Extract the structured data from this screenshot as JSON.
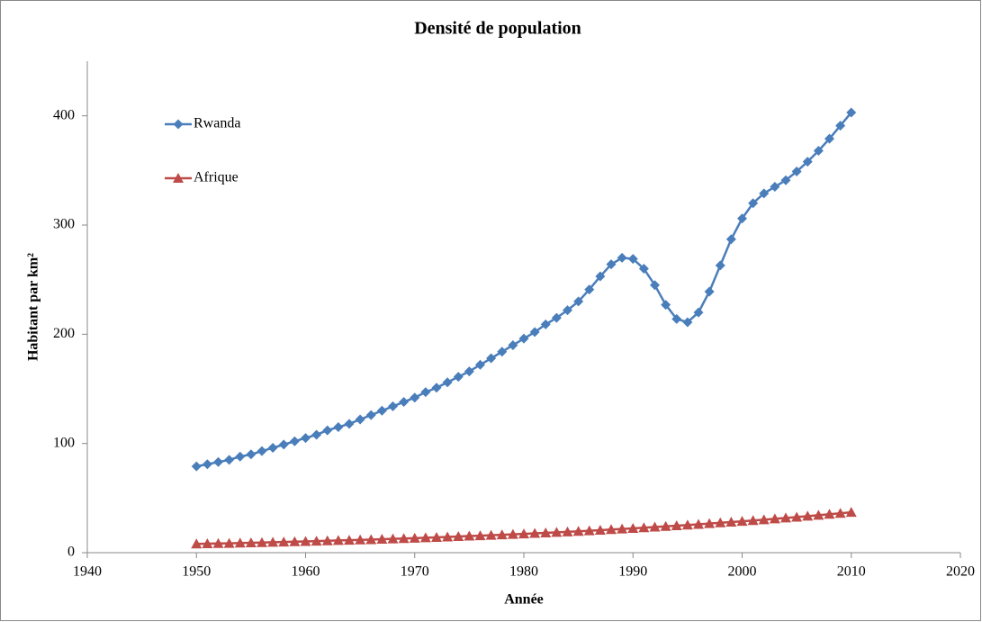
{
  "chart_data": {
    "type": "line",
    "title": "Densité de population",
    "x_label": "Année",
    "y_label": "Habitant par km²",
    "x": [
      1950,
      1951,
      1952,
      1953,
      1954,
      1955,
      1956,
      1957,
      1958,
      1959,
      1960,
      1961,
      1962,
      1963,
      1964,
      1965,
      1966,
      1967,
      1968,
      1969,
      1970,
      1971,
      1972,
      1973,
      1974,
      1975,
      1976,
      1977,
      1978,
      1979,
      1980,
      1981,
      1982,
      1983,
      1984,
      1985,
      1986,
      1987,
      1988,
      1989,
      1990,
      1991,
      1992,
      1993,
      1994,
      1995,
      1996,
      1997,
      1998,
      1999,
      2000,
      2001,
      2002,
      2003,
      2004,
      2005,
      2006,
      2007,
      2008,
      2009,
      2010
    ],
    "series": [
      {
        "name": "Rwanda",
        "color": "#4a7ebb",
        "marker": "diamond",
        "values": [
          79,
          81,
          83,
          85,
          88,
          90,
          93,
          96,
          99,
          102,
          105,
          108,
          112,
          115,
          118,
          122,
          126,
          130,
          134,
          138,
          142,
          147,
          151,
          156,
          161,
          166,
          172,
          178,
          184,
          190,
          196,
          202,
          209,
          215,
          222,
          230,
          241,
          253,
          264,
          270,
          269,
          260,
          245,
          227,
          214,
          211,
          220,
          239,
          263,
          287,
          306,
          320,
          329,
          335,
          341,
          349,
          358,
          368,
          379,
          391,
          403
        ]
      },
      {
        "name": "Afrique",
        "color": "#be4b48",
        "marker": "triangle",
        "values": [
          8,
          8.2,
          8.4,
          8.6,
          8.9,
          9.1,
          9.3,
          9.6,
          9.8,
          10.1,
          10.3,
          10.6,
          10.9,
          11.2,
          11.4,
          11.7,
          12,
          12.4,
          12.7,
          13,
          13.3,
          13.7,
          14,
          14.4,
          14.8,
          15.2,
          15.6,
          16,
          16.4,
          16.8,
          17.2,
          17.7,
          18.1,
          18.6,
          19.1,
          19.6,
          20.1,
          20.6,
          21.2,
          21.7,
          22.3,
          22.9,
          23.5,
          24.1,
          24.7,
          25.3,
          26,
          26.7,
          27.4,
          28,
          28.7,
          29.5,
          30.2,
          31,
          31.8,
          32.6,
          33.5,
          34.3,
          35.2,
          36.1,
          37
        ]
      }
    ],
    "xlim": [
      1940,
      2020
    ],
    "xticks": [
      1940,
      1950,
      1960,
      1970,
      1980,
      1990,
      2000,
      2010,
      2020
    ],
    "ylim": [
      0,
      450
    ],
    "yticks": [
      0,
      100,
      200,
      300,
      400
    ],
    "grid": false,
    "legend": "top-left"
  }
}
